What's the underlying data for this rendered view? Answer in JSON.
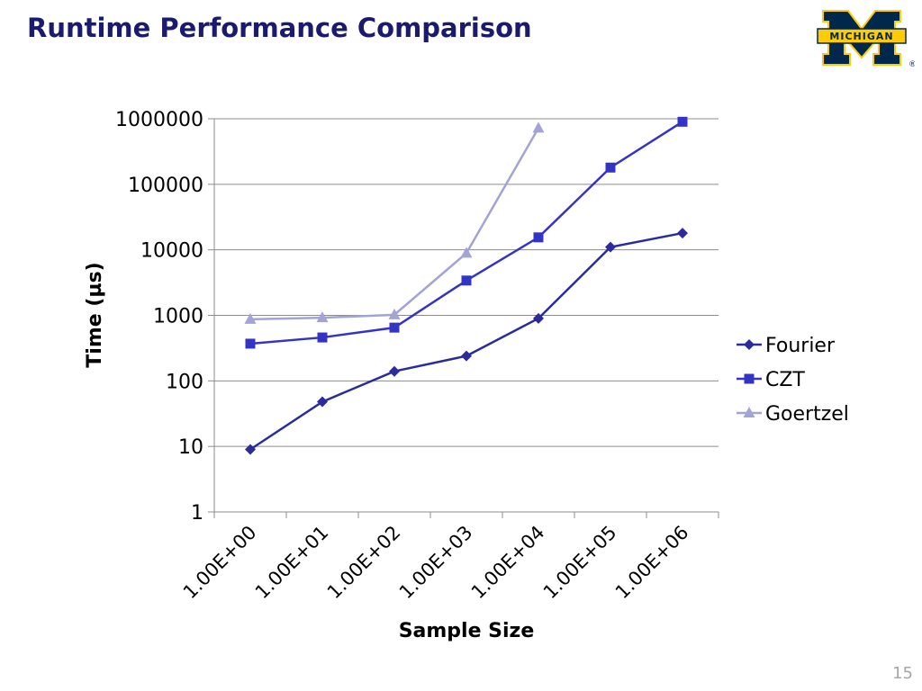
{
  "slide": {
    "title": "Runtime Performance Comparison",
    "page_number": "15",
    "logo_text": "MICHIGAN",
    "logo_mark": "®"
  },
  "colors": {
    "title": "#1a1a6e",
    "logo_blue": "#00274c",
    "logo_maize": "#ffcb05",
    "grid": "#8c8c8c"
  },
  "chart_data": {
    "type": "line",
    "title": "",
    "xlabel": "Sample Size",
    "ylabel": "Time (µs)",
    "y_scale": "log",
    "ylim": [
      1,
      1000000
    ],
    "y_ticks": [
      "1",
      "10",
      "100",
      "1000",
      "10000",
      "100000",
      "1000000"
    ],
    "categories": [
      "1.00E+00",
      "1.00E+01",
      "1.00E+02",
      "1.00E+03",
      "1.00E+04",
      "1.00E+05",
      "1.00E+06"
    ],
    "grid": true,
    "legend_position": "right",
    "series": [
      {
        "name": "Fourier",
        "color": "#2b2b9c",
        "marker": "diamond",
        "values": [
          9,
          48,
          140,
          240,
          900,
          11000,
          18000
        ]
      },
      {
        "name": "CZT",
        "color": "#3434c4",
        "marker": "square",
        "values": [
          370,
          460,
          650,
          3400,
          15500,
          180000,
          900000
        ]
      },
      {
        "name": "Goertzel",
        "color": "#a3a3d6",
        "marker": "triangle",
        "values": [
          870,
          920,
          1020,
          8900,
          720000,
          null,
          null
        ]
      }
    ]
  }
}
